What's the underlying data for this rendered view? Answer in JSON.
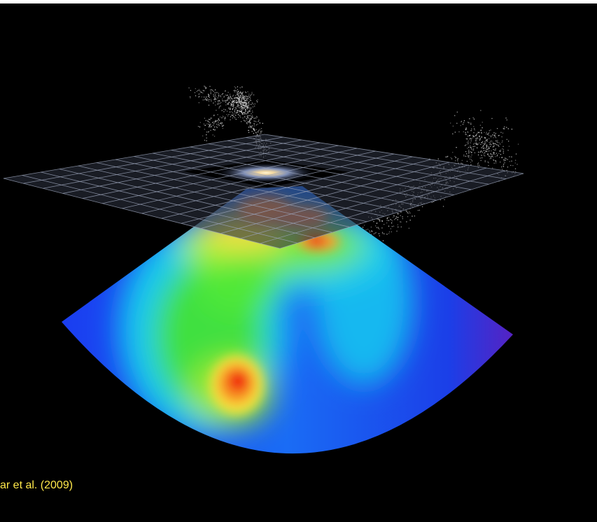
{
  "caption": "ar et al. (2009)"
}
